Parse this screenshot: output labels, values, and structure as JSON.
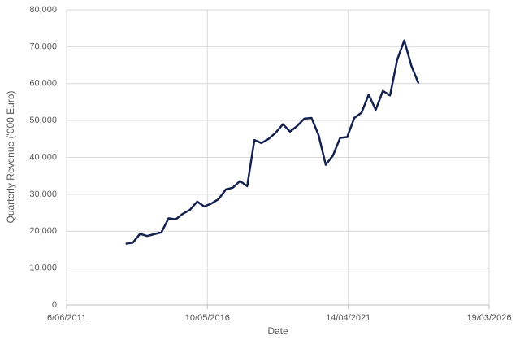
{
  "chart_data": {
    "type": "line",
    "x_label": "Date",
    "y_label": "Quarterly Revenue ('000 Euro)",
    "x": [
      "2013-06-30",
      "2013-09-30",
      "2013-12-31",
      "2014-03-31",
      "2014-06-30",
      "2014-09-30",
      "2014-12-31",
      "2015-03-31",
      "2015-06-30",
      "2015-09-30",
      "2015-12-31",
      "2016-03-31",
      "2016-06-30",
      "2016-09-30",
      "2016-12-31",
      "2017-03-31",
      "2017-06-30",
      "2017-09-30",
      "2017-12-31",
      "2018-03-31",
      "2018-06-30",
      "2018-09-30",
      "2018-12-31",
      "2019-03-31",
      "2019-06-30",
      "2019-09-30",
      "2019-12-31",
      "2020-03-31",
      "2020-06-30",
      "2020-09-30",
      "2020-12-31",
      "2021-03-31",
      "2021-06-30",
      "2021-09-30",
      "2021-12-31",
      "2022-03-31",
      "2022-06-30",
      "2022-09-30",
      "2022-12-31",
      "2023-03-31",
      "2023-06-30",
      "2023-09-30"
    ],
    "series": [
      {
        "color": "#13214f",
        "values": [
          16600,
          16900,
          19300,
          18700,
          19200,
          19700,
          23500,
          23200,
          24700,
          25800,
          28000,
          26700,
          27500,
          28700,
          31300,
          31800,
          33600,
          32200,
          44700,
          43900,
          45000,
          46700,
          49000,
          47000,
          48500,
          50500,
          50700,
          46000,
          38000,
          40500,
          45300,
          45500,
          50700,
          52100,
          57000,
          52900,
          58000,
          56800,
          66500,
          71700,
          64800,
          60000
        ]
      }
    ],
    "xlim": [
      "2011-06-06",
      "2026-03-19"
    ],
    "xticks": [
      {
        "value": "2011-06-06",
        "label": "6/06/2011"
      },
      {
        "value": "2016-05-10",
        "label": "10/05/2016"
      },
      {
        "value": "2021-04-14",
        "label": "14/04/2021"
      },
      {
        "value": "2026-03-19",
        "label": "19/03/2026"
      }
    ],
    "ylim": [
      0,
      80000
    ],
    "yticks": [
      0,
      {
        "value": 10000,
        "label": "10,000"
      },
      {
        "value": 20000,
        "label": "20,000"
      },
      {
        "value": 30000,
        "label": "30,000"
      },
      {
        "value": 40000,
        "label": "40,000"
      },
      {
        "value": 50000,
        "label": "50,000"
      },
      {
        "value": 60000,
        "label": "60,000"
      },
      {
        "value": 70000,
        "label": "70,000"
      },
      {
        "value": 80000,
        "label": "80,000"
      }
    ],
    "grid": true
  }
}
